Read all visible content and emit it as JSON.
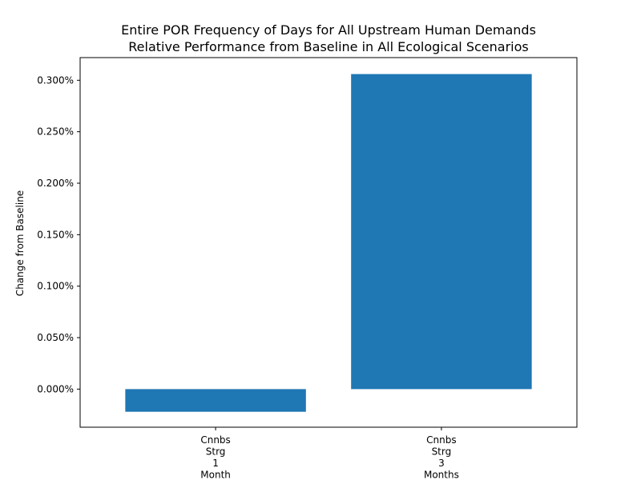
{
  "chart_data": {
    "type": "bar",
    "title": [
      "Entire POR Frequency of Days for All Upstream Human Demands",
      "Relative Performance from Baseline in All Ecological Scenarios"
    ],
    "ylabel": "Change from Baseline",
    "xlabel": "",
    "categories": [
      [
        "Cnnbs",
        "Strg",
        "1",
        "Month"
      ],
      [
        "Cnnbs",
        "Strg",
        "3",
        "Months"
      ]
    ],
    "values": [
      -0.022,
      0.306
    ],
    "value_unit": "%",
    "ylim": [
      -0.037,
      0.322
    ],
    "yticks": [
      0.0,
      0.05,
      0.1,
      0.15,
      0.2,
      0.25,
      0.3
    ],
    "ytick_labels": [
      "0.000%",
      "0.050%",
      "0.100%",
      "0.150%",
      "0.200%",
      "0.250%",
      "0.300%"
    ],
    "grid": false,
    "legend": "none",
    "colors": {
      "bar": "#1f77b4",
      "axis": "#000000",
      "background": "#ffffff"
    }
  }
}
